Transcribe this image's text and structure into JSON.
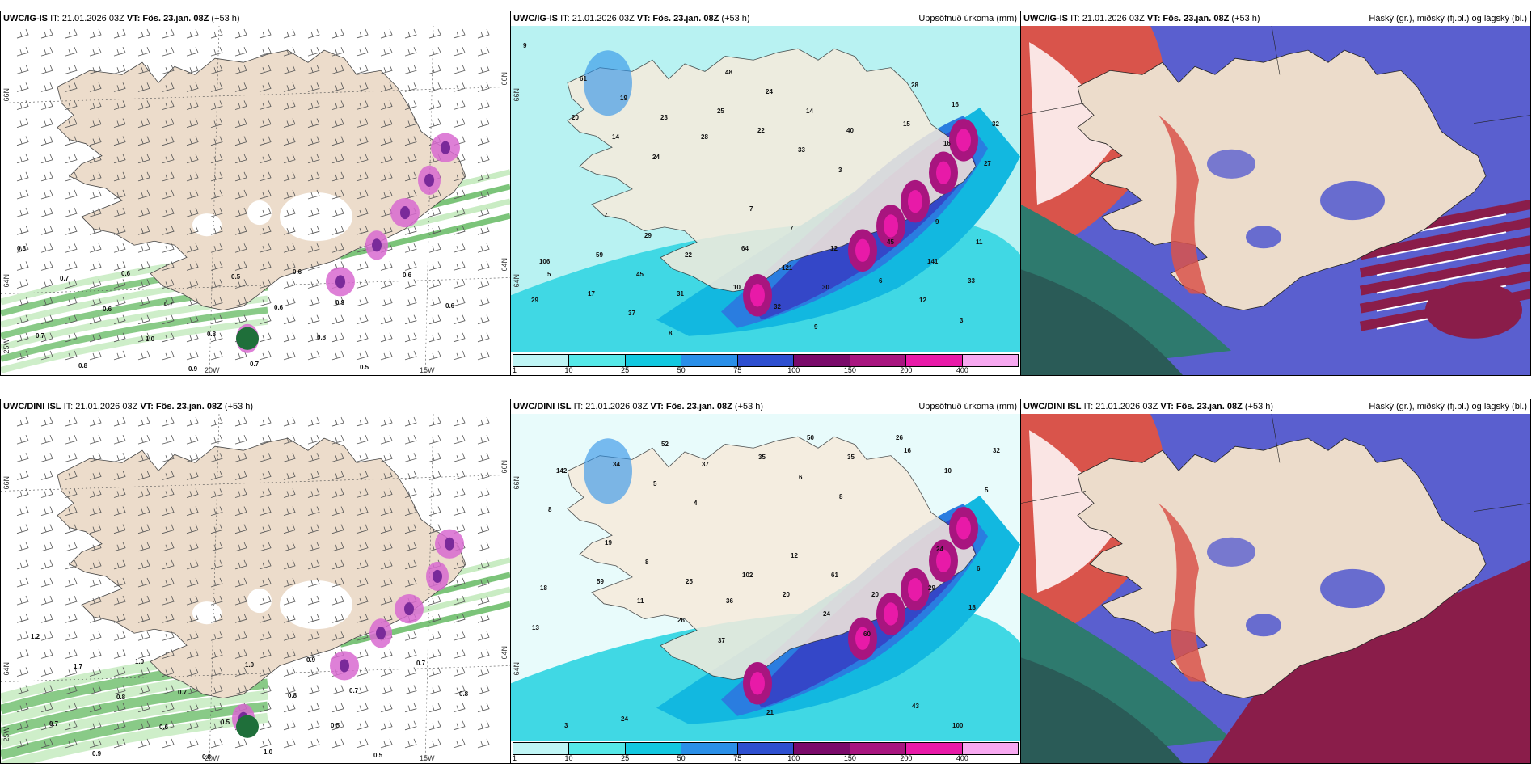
{
  "panels": [
    {
      "id": "r1c1",
      "model": "UWC/IG-IS",
      "it_label": "IT: 21.01.2026 03Z",
      "vt_label": "VT: Fös. 23.jan. 08Z",
      "lead": "(+53 h)",
      "right_title": "",
      "kind": "wind",
      "ticks": {
        "lat_top": "66N",
        "lat_bottom": "64N",
        "lat_top_right": "66N",
        "lat_bottom_right": "64N",
        "lon_left": "25W",
        "lon_mid": "20W",
        "lon_right": "15W"
      },
      "values": [
        "0.8",
        "0.7",
        "0.6",
        "1.0",
        "0.9",
        "0.5",
        "0.6",
        "0.8",
        "0.5",
        "0.6",
        "0.6",
        "0.7",
        "0.8",
        "0.6",
        "0.7",
        "0.8",
        "0.7",
        "0.6",
        "0.9"
      ]
    },
    {
      "id": "r1c2",
      "model": "UWC/IG-IS",
      "it_label": "IT: 21.01.2026 03Z",
      "vt_label": "VT: Fös. 23.jan. 08Z",
      "lead": "(+53 h)",
      "right_title": "Uppsöfnuð úrkoma (mm)",
      "kind": "precip",
      "ticks": {
        "lat_top": "66N",
        "lat_bottom": "64N"
      },
      "values": [
        "9",
        "8",
        "9",
        "3",
        "37",
        "32",
        "12",
        "17",
        "10",
        "6",
        "5",
        "3",
        "27",
        "24",
        "33",
        "16",
        "14",
        "22",
        "15",
        "20",
        "25",
        "29",
        "31",
        "30",
        "33",
        "45",
        "121",
        "141",
        "59",
        "64",
        "45",
        "28",
        "40",
        "32",
        "23",
        "14",
        "16",
        "19",
        "24",
        "28",
        "61",
        "48",
        "106",
        "22",
        "12",
        "11",
        "29",
        "7",
        "9",
        "7",
        "7"
      ],
      "colorbar": {
        "labels": [
          "1",
          "10",
          "25",
          "50",
          "75",
          "100",
          "150",
          "200",
          "400"
        ],
        "colors": [
          "#bff5f5",
          "#55e8e8",
          "#12c8e0",
          "#2a8fe8",
          "#2e4fd0",
          "#7a0a6a",
          "#a8157f",
          "#e81aa8",
          "#f7a8f0"
        ]
      }
    },
    {
      "id": "r1c3",
      "model": "UWC/IG-IS",
      "it_label": "IT: 21.01.2026 03Z",
      "vt_label": "VT: Fös. 23.jan. 08Z",
      "lead": "(+53 h)",
      "right_title": "Háský (gr.), miðský (fj.bl.) og lágský (bl.)",
      "kind": "cloud",
      "values": []
    },
    {
      "id": "r2c1",
      "model": "UWC/DINI ISL",
      "it_label": "IT: 21.01.2026 03Z",
      "vt_label": "VT: Fös. 23.jan. 08Z",
      "lead": "(+53 h)",
      "right_title": "",
      "kind": "wind",
      "ticks": {
        "lat_top": "66N",
        "lat_bottom": "64N",
        "lat_top_right": "66N",
        "lat_bottom_right": "64N",
        "lon_left": "25W",
        "lon_mid": "20W",
        "lon_right": "15W"
      },
      "values": [
        "1.2",
        "1.7",
        "0.8",
        "0.6",
        "0.8",
        "1.0",
        "0.8",
        "0.5",
        "0.5",
        "0.7",
        "0.8",
        "0.7",
        "0.9",
        "1.0",
        "0.7",
        "0.5",
        "1.0",
        "0.9",
        "0.7"
      ]
    },
    {
      "id": "r2c2",
      "model": "UWC/DINI ISL",
      "it_label": "IT: 21.01.2026 03Z",
      "vt_label": "VT: Fös. 23.jan. 08Z",
      "lead": "(+53 h)",
      "right_title": "Uppsöfnuð úrkoma (mm)",
      "kind": "precip",
      "ticks": {
        "lat_top": "66N",
        "lat_bottom": "64N"
      },
      "values": [
        "8",
        "4",
        "8",
        "5",
        "5",
        "6",
        "10",
        "34",
        "35",
        "16",
        "37",
        "60",
        "13",
        "26",
        "24",
        "18",
        "11",
        "20",
        "29",
        "59",
        "102",
        "142",
        "37",
        "35",
        "32",
        "52",
        "50",
        "100",
        "24",
        "21",
        "43",
        "36",
        "20",
        "18",
        "25",
        "61",
        "6",
        "8",
        "12",
        "24",
        "19",
        "26",
        "3"
      ],
      "colorbar": {
        "labels": [
          "1",
          "10",
          "25",
          "50",
          "75",
          "100",
          "150",
          "200",
          "400"
        ],
        "colors": [
          "#bff5f5",
          "#55e8e8",
          "#12c8e0",
          "#2a8fe8",
          "#2e4fd0",
          "#7a0a6a",
          "#a8157f",
          "#e81aa8",
          "#f7a8f0"
        ]
      }
    },
    {
      "id": "r2c3",
      "model": "UWC/DINI ISL",
      "it_label": "IT: 21.01.2026 03Z",
      "vt_label": "VT: Fös. 23.jan. 08Z",
      "lead": "(+53 h)",
      "right_title": "Háský (gr.), miðský (fj.bl.) og lágský (bl.)",
      "kind": "cloud",
      "values": []
    }
  ]
}
